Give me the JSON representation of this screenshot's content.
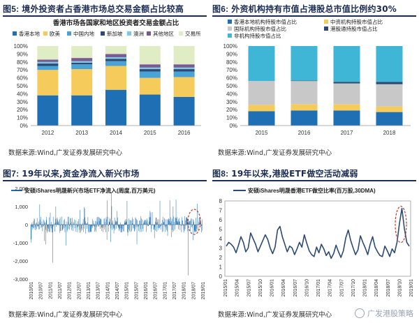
{
  "figures": {
    "fig5": {
      "title_no": "图5:",
      "title": "境外投资者占香港市场总交易金额占比较高",
      "source": "数据来源:Wind,广发证券发展研究中心"
    },
    "fig6": {
      "title_no": "图6:",
      "title": "外资机构持有市值占港股总市值比例约30%",
      "source": "数据来源:Wind,广发证券发展研究中心"
    },
    "fig7": {
      "title_no": "图7:",
      "title": "19年以来,资金净流入新兴市场",
      "source": "数据来源:Wind,广发证券发展研究中心"
    },
    "fig8": {
      "title_no": "图8:",
      "title": "19年以来,港股ETF做空活动减弱",
      "source": "数据来源:Wind,广发证券发展研究中心"
    }
  },
  "watermark": "广发港股策略",
  "chart_data": [
    {
      "id": "fig5",
      "type": "bar",
      "stacked": true,
      "title": "香港市场各国家和地区投资者交易金额占比",
      "categories": [
        "2012",
        "2013",
        "2014",
        "2015",
        "2016"
      ],
      "ylim": [
        0,
        100
      ],
      "ytick_labels": [
        "0%",
        "10%",
        "20%",
        "30%",
        "40%",
        "50%",
        "60%",
        "70%",
        "80%",
        "90%",
        "100%"
      ],
      "series": [
        {
          "name": "香港本地",
          "color": "#1f6fb5",
          "values": [
            38,
            38,
            45,
            39,
            36
          ]
        },
        {
          "name": "欧美",
          "color": "#f5cb5c",
          "values": [
            32,
            33,
            30,
            21,
            25
          ]
        },
        {
          "name": "中国内地",
          "color": "#4aa3d6",
          "values": [
            5,
            6,
            6,
            8,
            7
          ]
        },
        {
          "name": "新加坡",
          "color": "#2c4a73",
          "values": [
            3,
            2,
            3,
            3,
            3
          ]
        },
        {
          "name": "澳洲",
          "color": "#7dc8e2",
          "values": [
            2,
            2,
            2,
            2,
            2
          ]
        },
        {
          "name": "其他地区",
          "color": "#7a5a94",
          "values": [
            3,
            4,
            4,
            4,
            4
          ]
        },
        {
          "name": "交易所",
          "color": "#e0ecc4",
          "values": [
            17,
            15,
            10,
            23,
            23
          ]
        }
      ]
    },
    {
      "id": "fig6",
      "type": "bar",
      "stacked": true,
      "categories": [
        "2015",
        "2016",
        "2017",
        "2018"
      ],
      "ylim": [
        0,
        100
      ],
      "ytick_labels": [
        "0%",
        "10%",
        "20%",
        "30%",
        "40%",
        "50%",
        "60%",
        "70%",
        "80%",
        "90%",
        "100%"
      ],
      "series": [
        {
          "name": "香港本地机构持股市值占比",
          "color": "#1f6fb5",
          "values": [
            18,
            19,
            19,
            17
          ]
        },
        {
          "name": "中资机构持股市值占比",
          "color": "#f5cb5c",
          "values": [
            8,
            8,
            8,
            7
          ]
        },
        {
          "name": "国际机构持股市值占比",
          "color": "#c8c8c8",
          "values": [
            30,
            29,
            26,
            28
          ]
        },
        {
          "name": "港股通持股市值占比",
          "color": "#2c4a73",
          "values": [
            0,
            0.5,
            2,
            3
          ]
        },
        {
          "name": "非机构持股市值占比",
          "color": "#3fb6d6",
          "values": [
            44,
            43.5,
            45,
            45
          ]
        }
      ]
    },
    {
      "id": "fig7",
      "type": "bar",
      "title": "安硕iShares明晟新兴市场ETF净流入(周度,百万美元)",
      "color": "#1f6fb5",
      "ylim": [
        -3000,
        2000
      ],
      "ytick_labels": [
        "-3,000",
        "-2,000",
        "-1,000",
        "0",
        "1,000",
        "2,000"
      ],
      "x_tick_labels": [
        "2010/01",
        "2010/07",
        "2011/01",
        "2011/07",
        "2012/01",
        "2012/07",
        "2013/01",
        "2013/07",
        "2014/01",
        "2014/07",
        "2015/01",
        "2015/07",
        "2016/01",
        "2016/07",
        "2017/01",
        "2017/07",
        "2018/01",
        "2018/07",
        "2019/01"
      ]
    },
    {
      "id": "fig8",
      "type": "line",
      "title": "安硕iShares明晟香港ETF做空比率(百万股,30DMA)",
      "color": "#2c4a73",
      "ylim": [
        0,
        8
      ],
      "ytick_labels": [
        "0",
        "1",
        "2",
        "3",
        "4",
        "5",
        "6",
        "7",
        "8"
      ],
      "x_tick_labels": [
        "2015/01",
        "2015/04",
        "2015/07",
        "2015/10",
        "2016/01",
        "2016/04",
        "2016/07",
        "2016/10",
        "2017/01",
        "2017/04",
        "2017/07",
        "2017/10",
        "2018/01",
        "2018/04",
        "2018/07",
        "2018/10",
        "2019/01"
      ],
      "values": [
        3.2,
        3.6,
        3.4,
        3.1,
        2.5,
        3.3,
        4.2,
        3.6,
        2.6,
        3.0,
        4.6,
        4.0,
        3.4,
        2.6,
        3.2,
        3.8,
        4.4,
        3.9,
        3.0,
        2.4,
        3.1,
        4.9,
        5.3,
        4.2,
        3.4,
        2.6,
        3.2,
        3.0,
        2.3,
        2.9,
        3.6,
        3.1,
        4.4,
        3.5,
        2.7,
        2.3,
        2.1,
        3.1,
        2.5,
        3.4,
        2.9,
        2.2,
        2.6,
        1.9,
        2.4,
        3.3,
        2.6,
        2.0,
        2.7,
        4.1,
        4.9,
        3.8,
        3.0,
        2.3,
        2.8,
        4.3,
        3.6,
        3.0,
        2.3,
        3.4,
        4.2,
        3.1,
        2.6,
        2.2,
        2.1,
        3.2,
        2.7,
        2.1,
        2.9,
        2.5,
        3.6,
        5.6,
        7.2,
        5.1,
        3.6,
        3.2
      ]
    }
  ]
}
